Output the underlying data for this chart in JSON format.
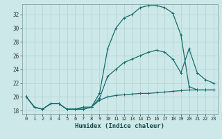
{
  "xlabel": "Humidex (Indice chaleur)",
  "bg_color": "#cce8e8",
  "grid_color": "#b8d8d8",
  "line_color": "#1a6b6b",
  "ylim": [
    17.5,
    33.5
  ],
  "xlim": [
    -0.5,
    23.5
  ],
  "yticks": [
    18,
    20,
    22,
    24,
    26,
    28,
    30,
    32
  ],
  "xticks": [
    0,
    1,
    2,
    3,
    4,
    5,
    6,
    7,
    8,
    9,
    10,
    11,
    12,
    13,
    14,
    15,
    16,
    17,
    18,
    19,
    20,
    21,
    22,
    23
  ],
  "xtick_labels": [
    "0",
    "1",
    "2",
    "3",
    "4",
    "5",
    "6",
    "7",
    "8",
    "9",
    "10",
    "11",
    "12",
    "13",
    "14",
    "15",
    "16",
    "17",
    "18",
    "19",
    "20",
    "21",
    "22",
    "23"
  ],
  "line1_x": [
    0,
    1,
    2,
    3,
    4,
    5,
    6,
    7,
    8,
    9,
    10,
    11,
    12,
    13,
    14,
    15,
    16,
    17,
    18,
    19,
    20,
    21,
    22,
    23
  ],
  "line1_y": [
    20.0,
    18.5,
    18.2,
    19.0,
    19.0,
    18.2,
    18.2,
    18.2,
    18.5,
    20.5,
    27.0,
    30.0,
    31.5,
    32.0,
    33.0,
    33.3,
    33.3,
    33.0,
    32.2,
    29.0,
    21.5,
    21.0,
    21.0,
    21.0
  ],
  "line2_x": [
    0,
    1,
    2,
    3,
    4,
    5,
    6,
    7,
    8,
    9,
    10,
    11,
    12,
    13,
    14,
    15,
    16,
    17,
    18,
    19,
    20,
    21,
    22,
    23
  ],
  "line2_y": [
    20.0,
    18.5,
    18.2,
    19.0,
    19.0,
    18.2,
    18.2,
    18.5,
    18.5,
    19.8,
    23.0,
    24.0,
    25.0,
    25.5,
    26.0,
    26.5,
    26.8,
    26.5,
    25.5,
    23.5,
    27.0,
    23.5,
    22.5,
    22.0
  ],
  "line3_x": [
    0,
    1,
    2,
    3,
    4,
    5,
    6,
    7,
    8,
    9,
    10,
    11,
    12,
    13,
    14,
    15,
    16,
    17,
    18,
    19,
    20,
    21,
    22,
    23
  ],
  "line3_y": [
    20.0,
    18.5,
    18.2,
    19.0,
    19.0,
    18.2,
    18.2,
    18.2,
    18.5,
    19.5,
    20.0,
    20.2,
    20.3,
    20.4,
    20.5,
    20.5,
    20.6,
    20.7,
    20.8,
    20.9,
    21.0,
    21.0,
    21.0,
    21.0
  ]
}
